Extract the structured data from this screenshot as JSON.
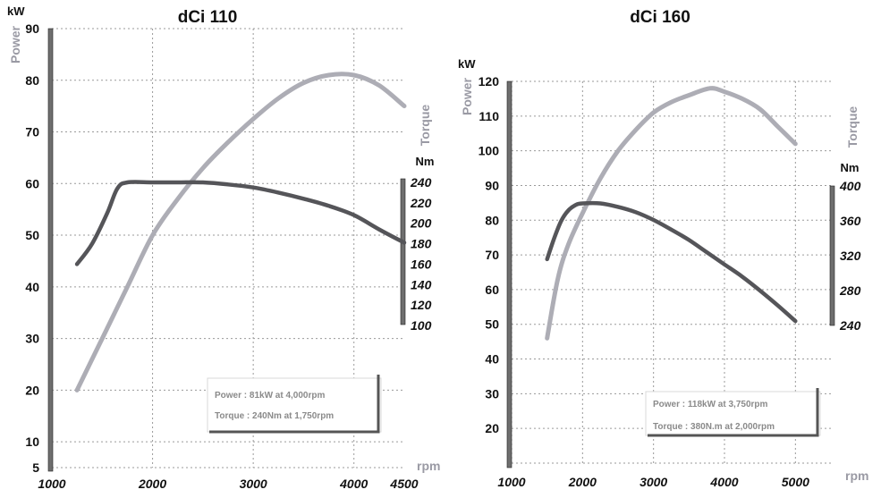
{
  "colors": {
    "power": "#adadb5",
    "torque": "#555559",
    "axis_bar": "#6e6e6e"
  },
  "chart_data": [
    {
      "type": "line",
      "title": "dCi 110",
      "ylabel": "Power",
      "y_unit": "kW",
      "y2label": "Torque",
      "y2_unit": "Nm",
      "xlabel": "rpm",
      "x_ticks": [
        1000,
        2000,
        3000,
        4000,
        4500
      ],
      "y_ticks": [
        5,
        10,
        20,
        30,
        40,
        50,
        60,
        70,
        80,
        90
      ],
      "y2_ticks": [
        100,
        120,
        140,
        160,
        180,
        200,
        220,
        240
      ],
      "xlim": [
        1000,
        4500
      ],
      "ylim": [
        5,
        90
      ],
      "y2lim": [
        100,
        240
      ],
      "grid": true,
      "legend": "bottom-right",
      "series": [
        {
          "name": "Power",
          "axis": "left",
          "x": [
            1250,
            1500,
            1750,
            2000,
            2250,
            2500,
            2750,
            3000,
            3250,
            3500,
            3750,
            4000,
            4250,
            4500
          ],
          "y": [
            20,
            30,
            40,
            50,
            57,
            63,
            68,
            72.5,
            76.5,
            79.5,
            81,
            81,
            79,
            75
          ]
        },
        {
          "name": "Torque",
          "axis": "right",
          "x": [
            1250,
            1400,
            1550,
            1650,
            1750,
            2000,
            2250,
            2500,
            2750,
            3000,
            3250,
            3500,
            3750,
            4000,
            4250,
            4500
          ],
          "y": [
            160,
            180,
            210,
            234,
            240,
            240,
            240,
            240,
            238,
            235,
            230,
            224,
            217,
            208,
            194,
            181
          ]
        }
      ],
      "annotations": [
        "Power : 81kW at 4,000rpm",
        "Torque : 240Nm at 1,750rpm"
      ]
    },
    {
      "type": "line",
      "title": "dCi 160",
      "ylabel": "Power",
      "y_unit": "kW",
      "y2label": "Torque",
      "y2_unit": "Nm",
      "xlabel": "rpm",
      "x_ticks": [
        1000,
        2000,
        3000,
        4000,
        5000
      ],
      "y_ticks": [
        20,
        30,
        40,
        50,
        60,
        70,
        80,
        90,
        100,
        110,
        120
      ],
      "y2_ticks": [
        240,
        280,
        320,
        360,
        400
      ],
      "xlim": [
        1000,
        5500
      ],
      "ylim": [
        10,
        120
      ],
      "y2lim": [
        240,
        400
      ],
      "grid": true,
      "legend": "bottom-right",
      "series": [
        {
          "name": "Power",
          "axis": "left",
          "x": [
            1500,
            1650,
            1800,
            2000,
            2250,
            2500,
            2750,
            3000,
            3250,
            3500,
            3800,
            4000,
            4250,
            4500,
            4750,
            5000
          ],
          "y": [
            46,
            63,
            73,
            82,
            92,
            100,
            106,
            111,
            114,
            116,
            118,
            117,
            115,
            112,
            107,
            102
          ]
        },
        {
          "name": "Torque",
          "axis": "right",
          "x": [
            1500,
            1600,
            1700,
            1800,
            1900,
            2000,
            2250,
            2500,
            2750,
            3000,
            3250,
            3500,
            3750,
            4000,
            4250,
            4500,
            4750,
            5000
          ],
          "y": [
            316,
            340,
            360,
            372,
            378,
            380,
            380,
            376,
            370,
            361,
            350,
            338,
            324,
            310,
            296,
            280,
            263,
            245
          ]
        }
      ],
      "annotations": [
        "Power : 118kW at 3,750rpm",
        "Torque : 380N.m at 2,000rpm"
      ]
    }
  ]
}
